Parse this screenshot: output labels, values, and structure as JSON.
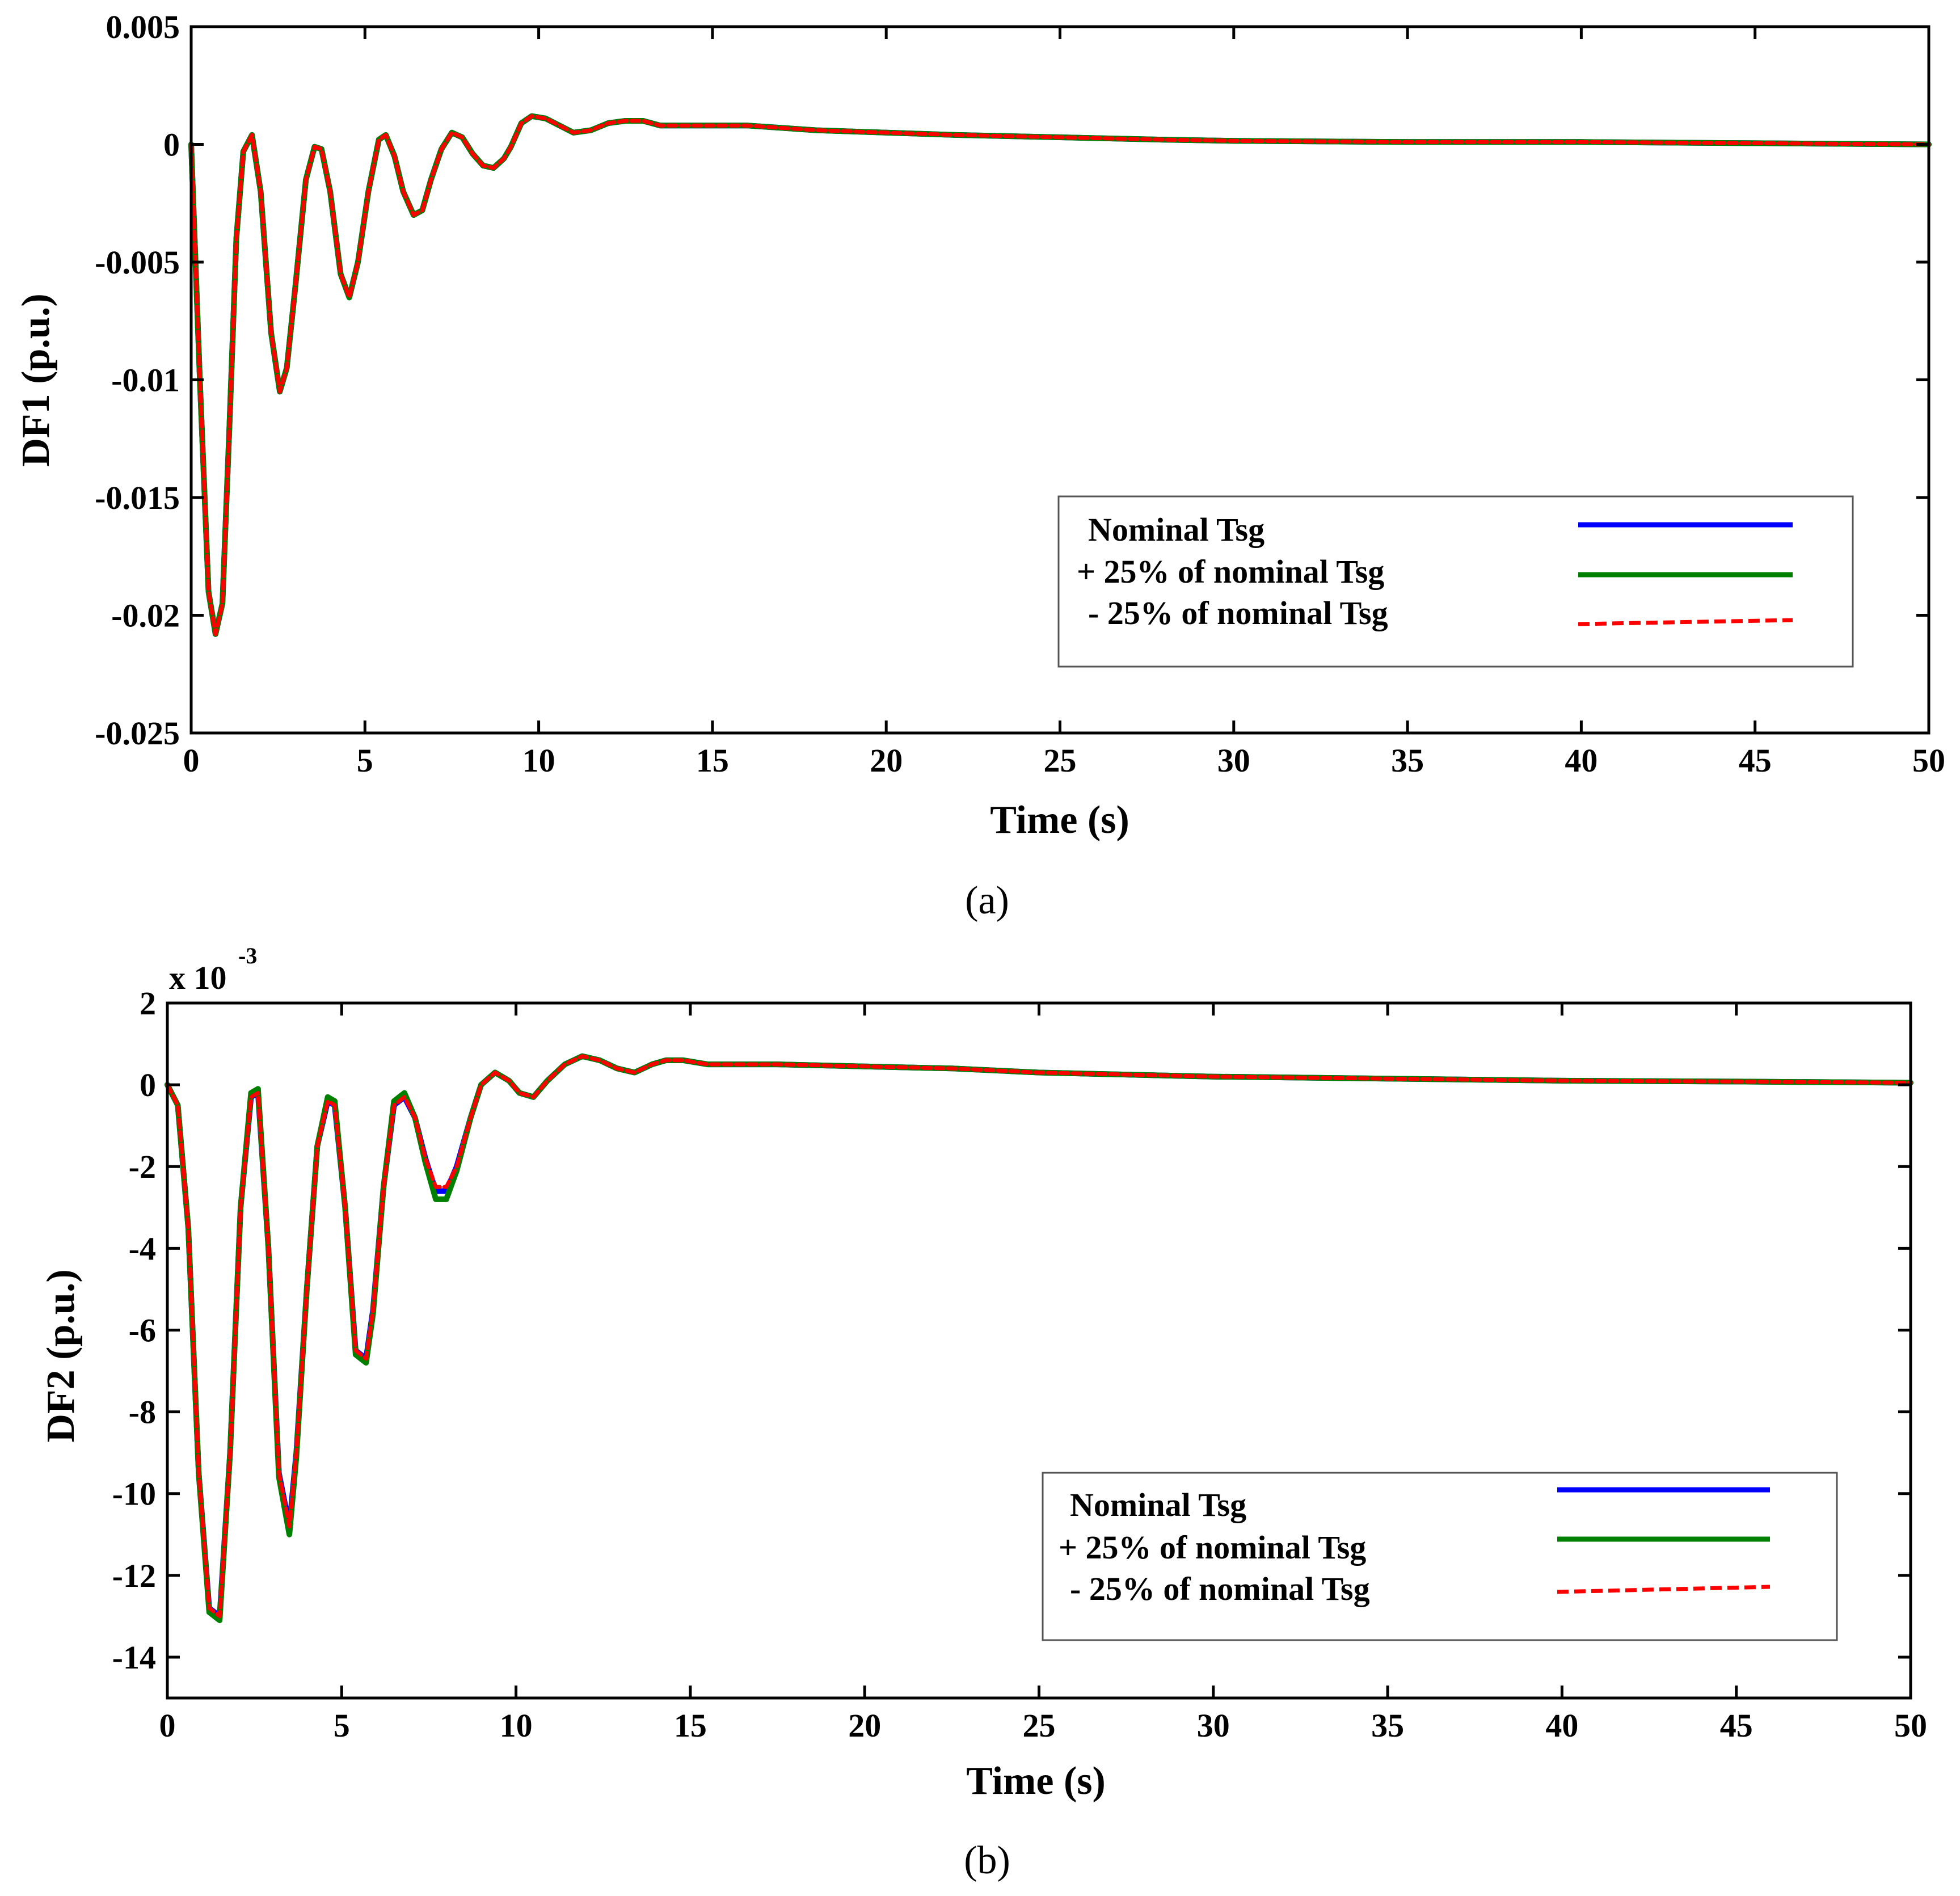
{
  "chart_data": [
    {
      "type": "line",
      "panel_label": "(a)",
      "xlabel": "Time (s)",
      "ylabel": "DF1 (p.u.)",
      "xlim": [
        0,
        50
      ],
      "ylim": [
        -0.025,
        0.005
      ],
      "x_ticks": [
        0,
        5,
        10,
        15,
        20,
        25,
        30,
        35,
        40,
        45,
        50
      ],
      "x_tick_labels": [
        "0",
        "5",
        "10",
        "15",
        "20",
        "25",
        "30",
        "35",
        "40",
        "45",
        "50"
      ],
      "y_ticks": [
        0.005,
        0,
        -0.005,
        -0.01,
        -0.015,
        -0.02,
        -0.025
      ],
      "y_tick_labels": [
        "0.005",
        "0",
        "-0.005",
        "-0.01",
        "-0.015",
        "-0.02",
        "-0.025"
      ],
      "legend_position": "lower-right",
      "legend": [
        "Nominal Tsg",
        "+ 25% of nominal Tsg",
        "- 25% of nominal Tsg"
      ],
      "series": [
        {
          "name": "Nominal Tsg",
          "color": "#0000ff",
          "style": "solid",
          "x": [
            0,
            0.25,
            0.5,
            0.7,
            0.9,
            1.1,
            1.3,
            1.5,
            1.75,
            2.0,
            2.3,
            2.55,
            2.75,
            3.0,
            3.3,
            3.55,
            3.75,
            4.0,
            4.3,
            4.55,
            4.8,
            5.1,
            5.4,
            5.6,
            5.85,
            6.1,
            6.4,
            6.65,
            6.9,
            7.2,
            7.5,
            7.8,
            8.1,
            8.4,
            8.7,
            9.0,
            9.2,
            9.5,
            9.8,
            10.2,
            10.6,
            11.0,
            11.5,
            12.0,
            12.5,
            13.0,
            13.5,
            14.0,
            15.0,
            16.0,
            18.0,
            20.0,
            22.0,
            25.0,
            28.0,
            30.0,
            35.0,
            40.0,
            45.0,
            50.0
          ],
          "y": [
            0,
            -0.01,
            -0.019,
            -0.0208,
            -0.0195,
            -0.012,
            -0.004,
            -0.0003,
            0.0004,
            -0.002,
            -0.008,
            -0.0105,
            -0.0095,
            -0.006,
            -0.0015,
            -0.0001,
            -0.0002,
            -0.002,
            -0.0055,
            -0.0065,
            -0.005,
            -0.002,
            0.0002,
            0.0004,
            -0.0005,
            -0.002,
            -0.003,
            -0.0028,
            -0.0015,
            -0.0002,
            0.0005,
            0.0003,
            -0.0004,
            -0.0009,
            -0.001,
            -0.0006,
            -0.0001,
            0.0009,
            0.0012,
            0.0011,
            0.0008,
            0.0005,
            0.0006,
            0.0009,
            0.001,
            0.001,
            0.0008,
            0.0008,
            0.0008,
            0.0008,
            0.0006,
            0.0005,
            0.0004,
            0.0003,
            0.0002,
            0.00015,
            0.0001,
            0.0001,
            5e-05,
            0
          ]
        },
        {
          "name": "+ 25% of nominal Tsg",
          "color": "#008000",
          "style": "solid",
          "x": [
            0,
            0.25,
            0.5,
            0.7,
            0.9,
            1.1,
            1.3,
            1.5,
            1.75,
            2.0,
            2.3,
            2.55,
            2.75,
            3.0,
            3.3,
            3.55,
            3.75,
            4.0,
            4.3,
            4.55,
            4.8,
            5.1,
            5.4,
            5.6,
            5.85,
            6.1,
            6.4,
            6.65,
            6.9,
            7.2,
            7.5,
            7.8,
            8.1,
            8.4,
            8.7,
            9.0,
            9.2,
            9.5,
            9.8,
            10.2,
            10.6,
            11.0,
            11.5,
            12.0,
            12.5,
            13.0,
            13.5,
            14.0,
            15.0,
            16.0,
            18.0,
            20.0,
            22.0,
            25.0,
            28.0,
            30.0,
            35.0,
            40.0,
            45.0,
            50.0
          ],
          "y": [
            0,
            -0.01,
            -0.019,
            -0.0208,
            -0.0195,
            -0.012,
            -0.004,
            -0.0003,
            0.0004,
            -0.002,
            -0.008,
            -0.0105,
            -0.0095,
            -0.006,
            -0.0015,
            -0.0001,
            -0.0002,
            -0.002,
            -0.0055,
            -0.0065,
            -0.005,
            -0.002,
            0.0002,
            0.0004,
            -0.0005,
            -0.002,
            -0.003,
            -0.0028,
            -0.0015,
            -0.0002,
            0.0005,
            0.0003,
            -0.0004,
            -0.0009,
            -0.001,
            -0.0006,
            -0.0001,
            0.0009,
            0.0012,
            0.0011,
            0.0008,
            0.0005,
            0.0006,
            0.0009,
            0.001,
            0.001,
            0.0008,
            0.0008,
            0.0008,
            0.0008,
            0.0006,
            0.0005,
            0.0004,
            0.0003,
            0.0002,
            0.00015,
            0.0001,
            0.0001,
            5e-05,
            0
          ]
        },
        {
          "name": "- 25% of nominal Tsg",
          "color": "#ff0000",
          "style": "dashed",
          "x": [
            0,
            0.25,
            0.5,
            0.7,
            0.9,
            1.1,
            1.3,
            1.5,
            1.75,
            2.0,
            2.3,
            2.55,
            2.75,
            3.0,
            3.3,
            3.55,
            3.75,
            4.0,
            4.3,
            4.55,
            4.8,
            5.1,
            5.4,
            5.6,
            5.85,
            6.1,
            6.4,
            6.65,
            6.9,
            7.2,
            7.5,
            7.8,
            8.1,
            8.4,
            8.7,
            9.0,
            9.2,
            9.5,
            9.8,
            10.2,
            10.6,
            11.0,
            11.5,
            12.0,
            12.5,
            13.0,
            13.5,
            14.0,
            15.0,
            16.0,
            18.0,
            20.0,
            22.0,
            25.0,
            28.0,
            30.0,
            35.0,
            40.0,
            45.0,
            50.0
          ],
          "y": [
            0,
            -0.01,
            -0.019,
            -0.0208,
            -0.0195,
            -0.012,
            -0.004,
            -0.0003,
            0.0004,
            -0.002,
            -0.008,
            -0.0105,
            -0.0095,
            -0.006,
            -0.0015,
            -0.0001,
            -0.0002,
            -0.002,
            -0.0055,
            -0.0065,
            -0.005,
            -0.002,
            0.0002,
            0.0004,
            -0.0005,
            -0.002,
            -0.003,
            -0.0028,
            -0.0015,
            -0.0002,
            0.0005,
            0.0003,
            -0.0004,
            -0.0009,
            -0.001,
            -0.0006,
            -0.0001,
            0.0009,
            0.0012,
            0.0011,
            0.0008,
            0.0005,
            0.0006,
            0.0009,
            0.001,
            0.001,
            0.0008,
            0.0008,
            0.0008,
            0.0008,
            0.0006,
            0.0005,
            0.0004,
            0.0003,
            0.0002,
            0.00015,
            0.0001,
            0.0001,
            5e-05,
            0
          ]
        }
      ]
    },
    {
      "type": "line",
      "panel_label": "(b)",
      "xlabel": "Time (s)",
      "ylabel": "DF2 (p.u.)",
      "y_scale_base": "x 10",
      "y_scale_exponent": "-3",
      "xlim": [
        0,
        50
      ],
      "ylim": [
        -15,
        2
      ],
      "x_ticks": [
        0,
        5,
        10,
        15,
        20,
        25,
        30,
        35,
        40,
        45,
        50
      ],
      "x_tick_labels": [
        "0",
        "5",
        "10",
        "15",
        "20",
        "25",
        "30",
        "35",
        "40",
        "45",
        "50"
      ],
      "y_ticks": [
        2,
        0,
        -2,
        -4,
        -6,
        -8,
        -10,
        -12,
        -14
      ],
      "y_tick_labels": [
        "2",
        "0",
        "-2",
        "-4",
        "-6",
        "-8",
        "-10",
        "-12",
        "-14"
      ],
      "legend_position": "lower-right",
      "legend": [
        "Nominal Tsg",
        "+ 25% of nominal Tsg",
        "- 25% of nominal Tsg"
      ],
      "series": [
        {
          "name": "Nominal Tsg",
          "color": "#0000ff",
          "style": "solid",
          "x": [
            0,
            0.3,
            0.6,
            0.9,
            1.2,
            1.5,
            1.8,
            2.1,
            2.4,
            2.6,
            2.9,
            3.2,
            3.5,
            3.7,
            4.0,
            4.3,
            4.6,
            4.8,
            5.1,
            5.4,
            5.7,
            5.9,
            6.2,
            6.5,
            6.8,
            7.1,
            7.4,
            7.7,
            8.0,
            8.3,
            8.7,
            9.0,
            9.4,
            9.8,
            10.1,
            10.5,
            10.9,
            11.4,
            11.9,
            12.4,
            12.9,
            13.4,
            13.9,
            14.3,
            14.8,
            15.5,
            16.5,
            17.5,
            20.0,
            22.5,
            25.0,
            27.5,
            30.0,
            35.0,
            40.0,
            45.0,
            50.0
          ],
          "y": [
            0,
            -0.5,
            -3.5,
            -9.5,
            -12.8,
            -13,
            -9,
            -3,
            -0.3,
            -0.2,
            -4,
            -9.5,
            -10.8,
            -9,
            -5,
            -1.5,
            -0.4,
            -0.5,
            -3,
            -6.5,
            -6.7,
            -5.5,
            -2.5,
            -0.5,
            -0.3,
            -0.8,
            -1.8,
            -2.6,
            -2.6,
            -2,
            -0.8,
            0,
            0.3,
            0.1,
            -0.2,
            -0.3,
            0.1,
            0.5,
            0.7,
            0.6,
            0.4,
            0.3,
            0.5,
            0.6,
            0.6,
            0.5,
            0.5,
            0.5,
            0.45,
            0.4,
            0.3,
            0.25,
            0.2,
            0.15,
            0.1,
            0.08,
            0.05
          ]
        },
        {
          "name": "+ 25% of nominal Tsg",
          "color": "#008000",
          "style": "solid",
          "x": [
            0,
            0.3,
            0.6,
            0.9,
            1.2,
            1.5,
            1.8,
            2.1,
            2.4,
            2.6,
            2.9,
            3.2,
            3.5,
            3.7,
            4.0,
            4.3,
            4.6,
            4.8,
            5.1,
            5.4,
            5.7,
            5.9,
            6.2,
            6.5,
            6.8,
            7.1,
            7.4,
            7.7,
            8.0,
            8.3,
            8.7,
            9.0,
            9.4,
            9.8,
            10.1,
            10.5,
            10.9,
            11.4,
            11.9,
            12.4,
            12.9,
            13.4,
            13.9,
            14.3,
            14.8,
            15.5,
            16.5,
            17.5,
            20.0,
            22.5,
            25.0,
            27.5,
            30.0,
            35.0,
            40.0,
            45.0,
            50.0
          ],
          "y": [
            0,
            -0.5,
            -3.5,
            -9.5,
            -12.9,
            -13.1,
            -9,
            -3,
            -0.2,
            -0.1,
            -4,
            -9.6,
            -11,
            -9.1,
            -5,
            -1.5,
            -0.3,
            -0.4,
            -3,
            -6.6,
            -6.8,
            -5.6,
            -2.5,
            -0.4,
            -0.2,
            -0.8,
            -1.9,
            -2.8,
            -2.8,
            -2.1,
            -0.8,
            0,
            0.3,
            0.1,
            -0.2,
            -0.3,
            0.1,
            0.5,
            0.7,
            0.6,
            0.4,
            0.3,
            0.5,
            0.6,
            0.6,
            0.5,
            0.5,
            0.5,
            0.45,
            0.4,
            0.3,
            0.25,
            0.2,
            0.15,
            0.1,
            0.08,
            0.05
          ]
        },
        {
          "name": "- 25% of nominal Tsg",
          "color": "#ff0000",
          "style": "dashed",
          "x": [
            0,
            0.3,
            0.6,
            0.9,
            1.2,
            1.5,
            1.8,
            2.1,
            2.4,
            2.6,
            2.9,
            3.2,
            3.5,
            3.7,
            4.0,
            4.3,
            4.6,
            4.8,
            5.1,
            5.4,
            5.7,
            5.9,
            6.2,
            6.5,
            6.8,
            7.1,
            7.4,
            7.7,
            8.0,
            8.3,
            8.7,
            9.0,
            9.4,
            9.8,
            10.1,
            10.5,
            10.9,
            11.4,
            11.9,
            12.4,
            12.9,
            13.4,
            13.9,
            14.3,
            14.8,
            15.5,
            16.5,
            17.5,
            20.0,
            22.5,
            25.0,
            27.5,
            30.0,
            35.0,
            40.0,
            45.0,
            50.0
          ],
          "y": [
            0,
            -0.5,
            -3.5,
            -9.5,
            -12.8,
            -13,
            -9,
            -3,
            -0.3,
            -0.2,
            -4,
            -9.5,
            -10.8,
            -9,
            -5,
            -1.5,
            -0.4,
            -0.5,
            -3,
            -6.5,
            -6.7,
            -5.5,
            -2.5,
            -0.5,
            -0.3,
            -0.8,
            -1.8,
            -2.5,
            -2.5,
            -2,
            -0.8,
            0,
            0.3,
            0.1,
            -0.2,
            -0.3,
            0.1,
            0.5,
            0.7,
            0.6,
            0.4,
            0.3,
            0.5,
            0.6,
            0.6,
            0.5,
            0.5,
            0.5,
            0.45,
            0.4,
            0.3,
            0.25,
            0.2,
            0.15,
            0.1,
            0.08,
            0.05
          ]
        }
      ]
    }
  ]
}
